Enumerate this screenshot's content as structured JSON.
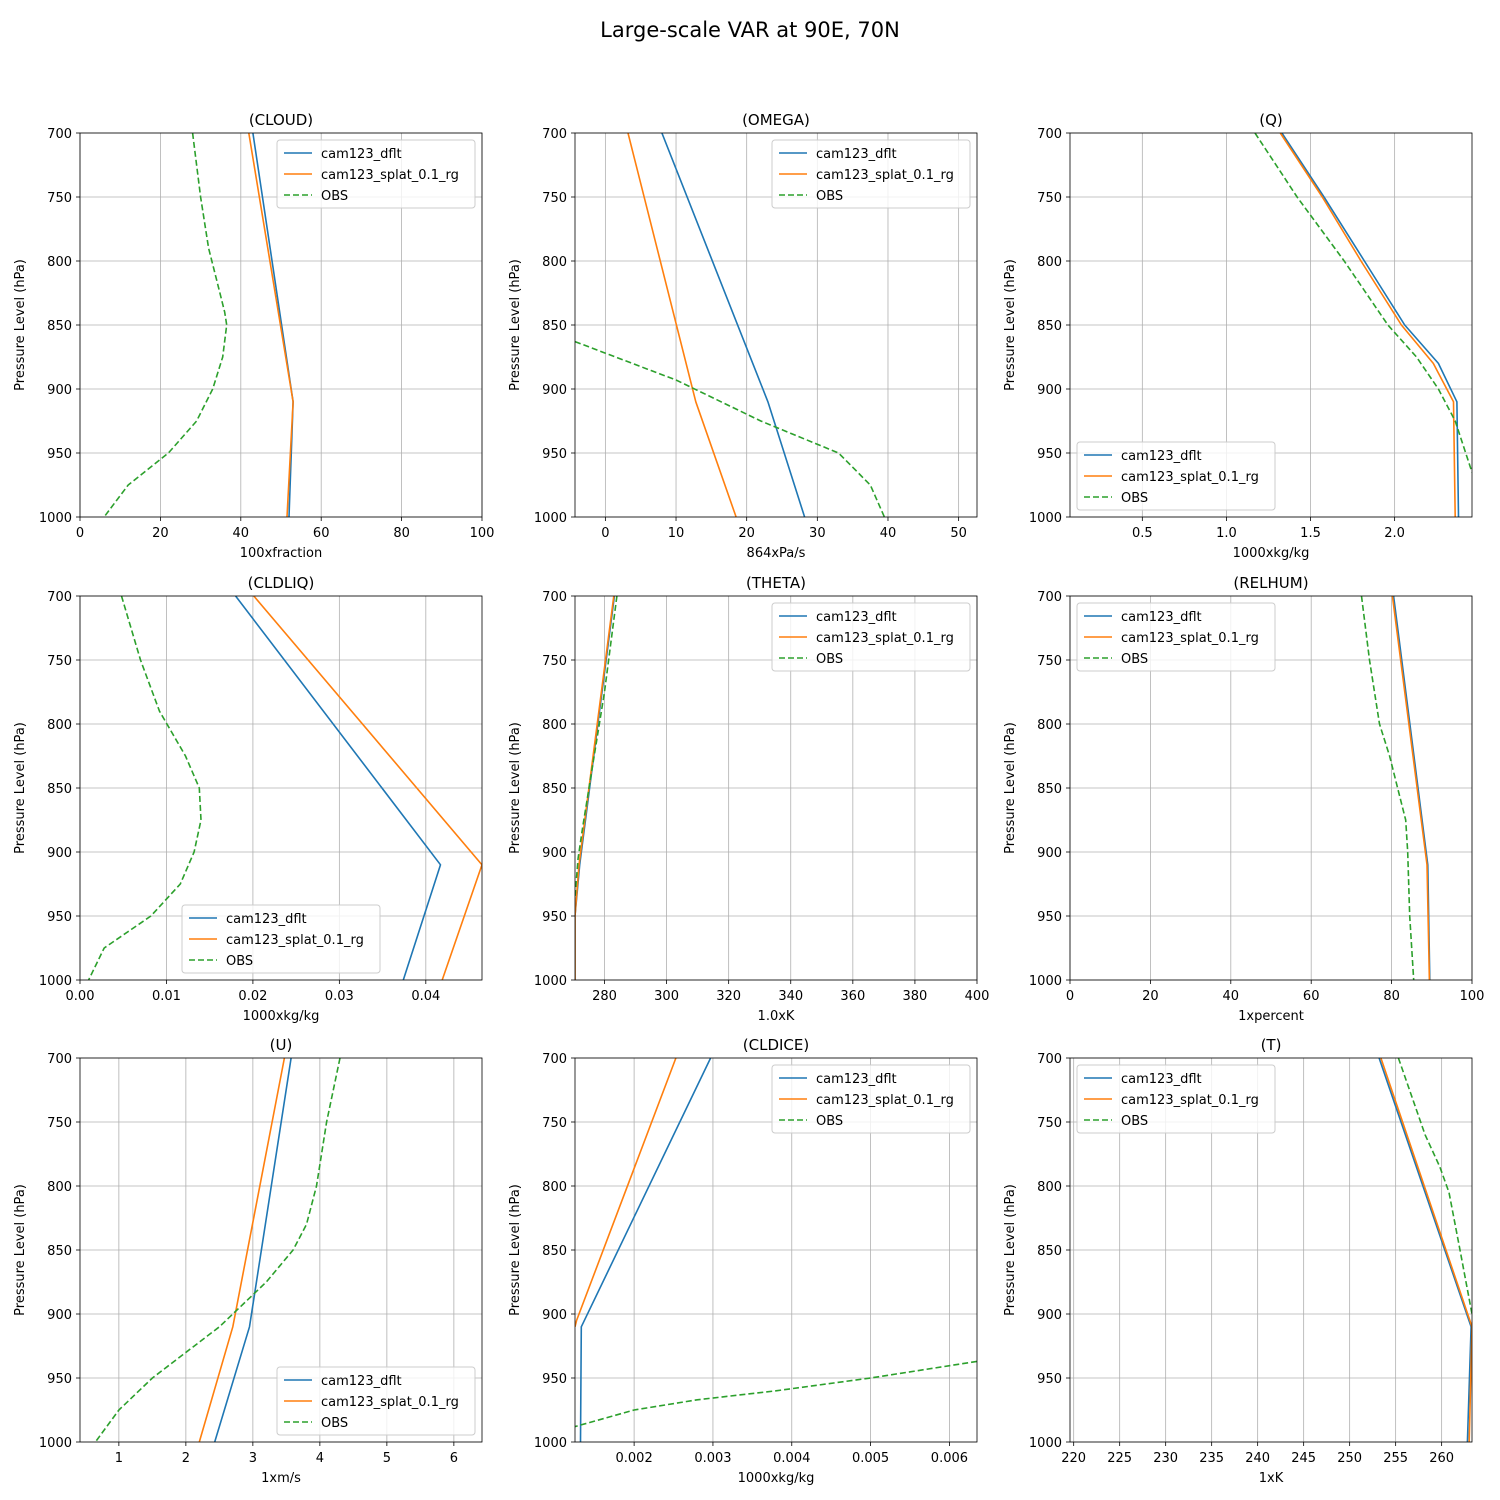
{
  "figure": {
    "title": "Large-scale VAR at 90E, 70N",
    "series_styles": [
      {
        "name": "cam123_dflt",
        "color": "#1f77b4",
        "dash": "solid"
      },
      {
        "name": "cam123_splat_0.1_rg",
        "color": "#ff7f0e",
        "dash": "solid"
      },
      {
        "name": "OBS",
        "color": "#2ca02c",
        "dash": "dashed"
      }
    ]
  },
  "chart_data": [
    {
      "type": "line",
      "title": "(CLOUD)",
      "xlabel": "100xfraction",
      "ylabel": "Pressure Level (hPa)",
      "xlim": [
        0,
        100
      ],
      "ylim": [
        1000,
        700
      ],
      "xticks": [
        0,
        20,
        40,
        60,
        80,
        100
      ],
      "xticklabels": [
        "0",
        "20",
        "40",
        "60",
        "80",
        "100"
      ],
      "yticks": [
        700,
        750,
        800,
        850,
        900,
        950,
        1000
      ],
      "yticklabels": [
        "700",
        "750",
        "800",
        "850",
        "900",
        "950",
        "1000"
      ],
      "legend_loc": "upper right",
      "series": [
        {
          "name": "cam123_dflt",
          "x": [
            43,
            53,
            52
          ],
          "y": [
            700,
            910,
            1000
          ]
        },
        {
          "name": "cam123_splat_0.1_rg",
          "x": [
            42,
            53,
            51.5
          ],
          "y": [
            700,
            910,
            1000
          ]
        },
        {
          "name": "OBS",
          "x": [
            28,
            30,
            32,
            34,
            36,
            36.5,
            35.5,
            33,
            29,
            22,
            12,
            6
          ],
          "y": [
            700,
            750,
            790,
            815,
            840,
            850,
            875,
            900,
            925,
            950,
            975,
            1000
          ]
        }
      ]
    },
    {
      "type": "line",
      "title": "(OMEGA)",
      "xlabel": "864xPa/s",
      "ylabel": "Pressure Level (hPa)",
      "xlim": [
        -4.3,
        52.6
      ],
      "ylim": [
        1000,
        700
      ],
      "xticks": [
        0,
        10,
        20,
        30,
        40,
        50
      ],
      "xticklabels": [
        "0",
        "10",
        "20",
        "30",
        "40",
        "50"
      ],
      "yticks": [
        700,
        750,
        800,
        850,
        900,
        950,
        1000
      ],
      "yticklabels": [
        "700",
        "750",
        "800",
        "850",
        "900",
        "950",
        "1000"
      ],
      "legend_loc": "upper right",
      "series": [
        {
          "name": "cam123_dflt",
          "x": [
            8,
            23,
            28.2
          ],
          "y": [
            700,
            910,
            1000
          ]
        },
        {
          "name": "cam123_splat_0.1_rg",
          "x": [
            3.2,
            12.8,
            18.5
          ],
          "y": [
            700,
            910,
            1000
          ]
        },
        {
          "name": "OBS",
          "x": [
            -4.3,
            10,
            22,
            33,
            37.5,
            39.5
          ],
          "y": [
            863,
            893,
            925,
            950,
            975,
            1000
          ]
        }
      ]
    },
    {
      "type": "line",
      "title": "(Q)",
      "xlabel": "1000xkg/kg",
      "ylabel": "Pressure Level (hPa)",
      "xlim": [
        0.07,
        2.46
      ],
      "ylim": [
        1000,
        700
      ],
      "xticks": [
        0.5,
        1.0,
        1.5,
        2.0
      ],
      "xticklabels": [
        "0.5",
        "1.0",
        "1.5",
        "2.0"
      ],
      "yticks": [
        700,
        750,
        800,
        850,
        900,
        950,
        1000
      ],
      "yticklabels": [
        "700",
        "750",
        "800",
        "850",
        "900",
        "950",
        "1000"
      ],
      "legend_loc": "lower left",
      "series": [
        {
          "name": "cam123_dflt",
          "x": [
            1.33,
            1.58,
            1.82,
            2.06,
            2.26,
            2.37,
            2.38
          ],
          "y": [
            700,
            750,
            800,
            850,
            880,
            910,
            1000
          ]
        },
        {
          "name": "cam123_splat_0.1_rg",
          "x": [
            1.32,
            1.57,
            1.8,
            2.04,
            2.23,
            2.35,
            2.36
          ],
          "y": [
            700,
            750,
            800,
            850,
            880,
            910,
            1000
          ]
        },
        {
          "name": "OBS",
          "x": [
            1.17,
            1.42,
            1.7,
            1.96,
            2.13,
            2.26,
            2.36,
            2.46
          ],
          "y": [
            700,
            750,
            800,
            850,
            875,
            900,
            925,
            965
          ]
        }
      ]
    },
    {
      "type": "line",
      "title": "(CLDLIQ)",
      "xlabel": "1000xkg/kg",
      "ylabel": "Pressure Level (hPa)",
      "xlim": [
        0,
        0.0465
      ],
      "ylim": [
        1000,
        700
      ],
      "xticks": [
        0,
        0.01,
        0.02,
        0.03,
        0.04
      ],
      "xticklabels": [
        "0.00",
        "0.01",
        "0.02",
        "0.03",
        "0.04"
      ],
      "yticks": [
        700,
        750,
        800,
        850,
        900,
        950,
        1000
      ],
      "yticklabels": [
        "700",
        "750",
        "800",
        "850",
        "900",
        "950",
        "1000"
      ],
      "legend_loc": "lower center",
      "series": [
        {
          "name": "cam123_dflt",
          "x": [
            0.018,
            0.0417,
            0.0374
          ],
          "y": [
            700,
            910,
            1000
          ]
        },
        {
          "name": "cam123_splat_0.1_rg",
          "x": [
            0.0201,
            0.0465,
            0.0419
          ],
          "y": [
            700,
            910,
            1000
          ]
        },
        {
          "name": "OBS",
          "x": [
            0.0048,
            0.007,
            0.0092,
            0.0122,
            0.0138,
            0.014,
            0.0132,
            0.0116,
            0.0082,
            0.0028,
            0.001
          ],
          "y": [
            700,
            750,
            790,
            825,
            850,
            875,
            900,
            925,
            950,
            975,
            1000
          ]
        }
      ]
    },
    {
      "type": "line",
      "title": "(THETA)",
      "xlabel": "1.0xK",
      "ylabel": "Pressure Level (hPa)",
      "xlim": [
        270.5,
        400
      ],
      "ylim": [
        1000,
        700
      ],
      "xticks": [
        280,
        300,
        320,
        340,
        360,
        380,
        400
      ],
      "xticklabels": [
        "280",
        "300",
        "320",
        "340",
        "360",
        "380",
        "400"
      ],
      "yticks": [
        700,
        750,
        800,
        850,
        900,
        950,
        1000
      ],
      "yticklabels": [
        "700",
        "750",
        "800",
        "850",
        "900",
        "950",
        "1000"
      ],
      "legend_loc": "upper right",
      "series": [
        {
          "name": "cam123_dflt",
          "x": [
            283.2,
            272,
            270.5,
            270.5
          ],
          "y": [
            700,
            910,
            950,
            1000
          ]
        },
        {
          "name": "cam123_splat_0.1_rg",
          "x": [
            283,
            271.8,
            270.5,
            270.5
          ],
          "y": [
            700,
            910,
            950,
            1000
          ]
        },
        {
          "name": "OBS",
          "x": [
            284,
            280,
            275,
            273,
            271.5,
            270.5
          ],
          "y": [
            700,
            775,
            850,
            880,
            905,
            935
          ]
        }
      ]
    },
    {
      "type": "line",
      "title": "(RELHUM)",
      "xlabel": "1xpercent",
      "ylabel": "Pressure Level (hPa)",
      "xlim": [
        0,
        100
      ],
      "ylim": [
        1000,
        700
      ],
      "xticks": [
        0,
        20,
        40,
        60,
        80,
        100
      ],
      "xticklabels": [
        "0",
        "20",
        "40",
        "60",
        "80",
        "100"
      ],
      "yticks": [
        700,
        750,
        800,
        850,
        900,
        950,
        1000
      ],
      "yticklabels": [
        "700",
        "750",
        "800",
        "850",
        "900",
        "950",
        "1000"
      ],
      "legend_loc": "upper left",
      "series": [
        {
          "name": "cam123_dflt",
          "x": [
            80.5,
            89,
            89.5
          ],
          "y": [
            700,
            910,
            1000
          ]
        },
        {
          "name": "cam123_splat_0.1_rg",
          "x": [
            80.2,
            88.8,
            89.4
          ],
          "y": [
            700,
            910,
            1000
          ]
        },
        {
          "name": "OBS",
          "x": [
            72.5,
            74.5,
            77,
            79.5,
            81.5,
            83.5,
            84,
            84.5,
            85.5
          ],
          "y": [
            700,
            750,
            800,
            825,
            850,
            875,
            900,
            950,
            1000
          ]
        }
      ]
    },
    {
      "type": "line",
      "title": "(U)",
      "xlabel": "1xm/s",
      "ylabel": "Pressure Level (hPa)",
      "xlim": [
        0.42,
        6.42
      ],
      "ylim": [
        1000,
        700
      ],
      "xticks": [
        1,
        2,
        3,
        4,
        5,
        6
      ],
      "xticklabels": [
        "1",
        "2",
        "3",
        "4",
        "5",
        "6"
      ],
      "yticks": [
        700,
        750,
        800,
        850,
        900,
        950,
        1000
      ],
      "yticklabels": [
        "700",
        "750",
        "800",
        "850",
        "900",
        "950",
        "1000"
      ],
      "legend_loc": "lower right",
      "series": [
        {
          "name": "cam123_dflt",
          "x": [
            3.57,
            2.95,
            2.43
          ],
          "y": [
            700,
            910,
            1000
          ]
        },
        {
          "name": "cam123_splat_0.1_rg",
          "x": [
            3.47,
            2.7,
            2.2
          ],
          "y": [
            700,
            910,
            1000
          ]
        },
        {
          "name": "OBS",
          "x": [
            4.3,
            4.1,
            3.95,
            3.8,
            3.6,
            3.2,
            2.5,
            1.5,
            1.0,
            0.65
          ],
          "y": [
            700,
            750,
            800,
            830,
            850,
            875,
            910,
            950,
            975,
            1000
          ]
        }
      ]
    },
    {
      "type": "line",
      "title": "(CLDICE)",
      "xlabel": "1000xkg/kg",
      "ylabel": "Pressure Level (hPa)",
      "xlim": [
        0.00125,
        0.00635
      ],
      "ylim": [
        1000,
        700
      ],
      "xticks": [
        0.002,
        0.003,
        0.004,
        0.005,
        0.006
      ],
      "xticklabels": [
        "0.002",
        "0.003",
        "0.004",
        "0.005",
        "0.006"
      ],
      "yticks": [
        700,
        750,
        800,
        850,
        900,
        950,
        1000
      ],
      "yticklabels": [
        "700",
        "750",
        "800",
        "850",
        "900",
        "950",
        "1000"
      ],
      "legend_loc": "upper right",
      "series": [
        {
          "name": "cam123_dflt",
          "x": [
            0.00297,
            0.00133,
            0.00132
          ],
          "y": [
            700,
            910,
            1000
          ]
        },
        {
          "name": "cam123_splat_0.1_rg",
          "x": [
            0.00253,
            0.00127,
            0.00125
          ],
          "y": [
            700,
            905,
            910
          ]
        },
        {
          "name": "OBS",
          "x": [
            0.00635,
            0.005,
            0.0038,
            0.0028,
            0.002,
            0.00125
          ],
          "y": [
            937,
            950,
            960,
            967,
            975,
            988
          ]
        }
      ]
    },
    {
      "type": "line",
      "title": "(T)",
      "xlabel": "1xK",
      "ylabel": "Pressure Level (hPa)",
      "xlim": [
        219.6,
        263.3
      ],
      "ylim": [
        1000,
        700
      ],
      "xticks": [
        220,
        225,
        230,
        235,
        240,
        245,
        250,
        255,
        260
      ],
      "xticklabels": [
        "220",
        "225",
        "230",
        "235",
        "240",
        "245",
        "250",
        "255",
        "260"
      ],
      "yticks": [
        700,
        750,
        800,
        850,
        900,
        950,
        1000
      ],
      "yticklabels": [
        "700",
        "750",
        "800",
        "850",
        "900",
        "950",
        "1000"
      ],
      "legend_loc": "upper left",
      "series": [
        {
          "name": "cam123_dflt",
          "x": [
            253.2,
            263.2,
            262.8
          ],
          "y": [
            700,
            910,
            1000
          ]
        },
        {
          "name": "cam123_splat_0.1_rg",
          "x": [
            253.4,
            263.3,
            263.0
          ],
          "y": [
            700,
            910,
            1000
          ]
        },
        {
          "name": "OBS",
          "x": [
            255.3,
            258.2,
            259.8,
            260.8,
            262,
            263.3
          ],
          "y": [
            700,
            760,
            785,
            805,
            850,
            900
          ]
        }
      ]
    }
  ]
}
